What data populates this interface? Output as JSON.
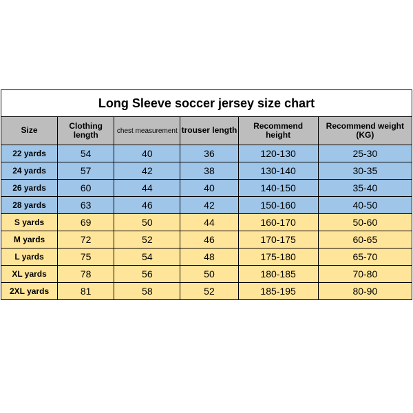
{
  "title": "Long Sleeve soccer jersey size chart",
  "columns": [
    {
      "label": "Size"
    },
    {
      "label": "Clothing<br>length"
    },
    {
      "label": "chest measurement",
      "small": true
    },
    {
      "label": "trouser length"
    },
    {
      "label": "Recommend<br>height"
    },
    {
      "label": "Recommend weight (KG)"
    }
  ],
  "colors": {
    "header_bg": "#bdbdbd",
    "blue_bg": "#9fc5e8",
    "yellow_bg": "#ffe599",
    "border": "#000000"
  },
  "rows": [
    {
      "group": "blue",
      "cells": [
        "22 yards",
        "54",
        "40",
        "36",
        "120-130",
        "25-30"
      ]
    },
    {
      "group": "blue",
      "cells": [
        "24 yards",
        "57",
        "42",
        "38",
        "130-140",
        "30-35"
      ]
    },
    {
      "group": "blue",
      "cells": [
        "26 yards",
        "60",
        "44",
        "40",
        "140-150",
        "35-40"
      ]
    },
    {
      "group": "blue",
      "cells": [
        "28 yards",
        "63",
        "46",
        "42",
        "150-160",
        "40-50"
      ]
    },
    {
      "group": "yellow",
      "cells": [
        "S yards",
        "69",
        "50",
        "44",
        "160-170",
        "50-60"
      ]
    },
    {
      "group": "yellow",
      "cells": [
        "M yards",
        "72",
        "52",
        "46",
        "170-175",
        "60-65"
      ]
    },
    {
      "group": "yellow",
      "cells": [
        "L yards",
        "75",
        "54",
        "48",
        "175-180",
        "65-70"
      ]
    },
    {
      "group": "yellow",
      "cells": [
        "XL yards",
        "78",
        "56",
        "50",
        "180-185",
        "70-80"
      ]
    },
    {
      "group": "yellow",
      "cells": [
        "2XL yards",
        "81",
        "58",
        "52",
        "185-195",
        "80-90"
      ]
    }
  ]
}
